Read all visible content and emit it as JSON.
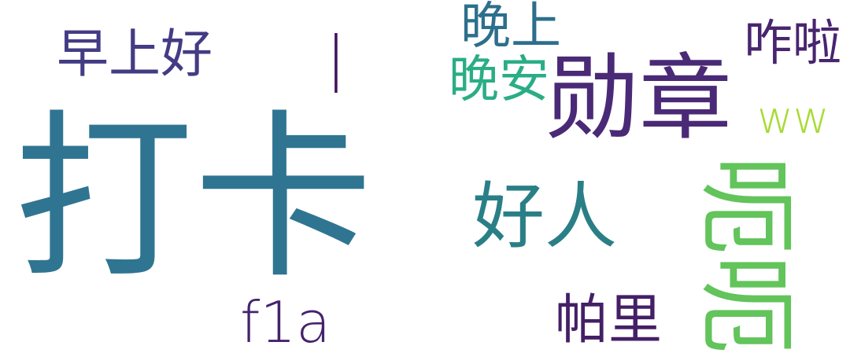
{
  "words": [
    {
      "text": "打卡",
      "color": "#2f7591"
    },
    {
      "text": "勋章",
      "color": "#4a2a76"
    },
    {
      "text": "早上好",
      "color": "#433c84"
    },
    {
      "text": "晚上",
      "color": "#2d6f8c"
    },
    {
      "text": "晚安",
      "color": "#2aad86"
    },
    {
      "text": "咋啦",
      "color": "#48256f"
    },
    {
      "text": "ww",
      "color": "#a8db34"
    },
    {
      "text": "好人",
      "color": "#2a7f87"
    },
    {
      "text": "f1a",
      "color": "#45226c"
    },
    {
      "text": "帕里",
      "color": "#441f66"
    },
    {
      "text": "呃呃",
      "color": "#62c45b"
    },
    {
      "text": "|",
      "color": "#45105b"
    }
  ]
}
